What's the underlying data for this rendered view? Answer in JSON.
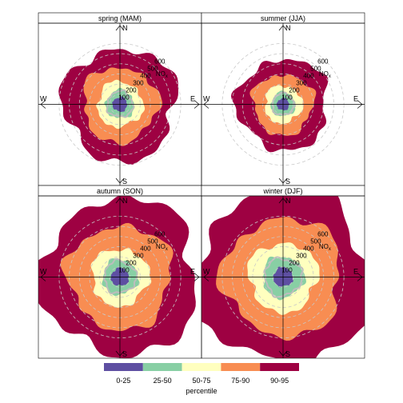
{
  "chart_data": {
    "type": "polar",
    "panels": [
      {
        "title": "spring (MAM)",
        "scale": [
          0.9,
          1.0,
          1.15,
          1.3,
          1.55
        ]
      },
      {
        "title": "summer (JJA)",
        "scale": [
          0.75,
          0.85,
          0.95,
          1.05,
          1.25
        ]
      },
      {
        "title": "autumn (SON)",
        "scale": [
          1.1,
          1.25,
          1.45,
          1.8,
          2.15
        ]
      },
      {
        "title": "winter (DJF)",
        "scale": [
          1.2,
          1.45,
          1.75,
          2.05,
          2.4
        ]
      }
    ],
    "directions": [
      "N",
      "E",
      "S",
      "W"
    ],
    "radial_ticks": [
      100,
      200,
      300,
      400,
      500,
      600
    ],
    "radial_max": 800,
    "radial_unit": "NO",
    "radial_unit_sub": "x",
    "percentile_bands": [
      {
        "label": "0-25",
        "color": "#5e4fa2",
        "radius": 80
      },
      {
        "label": "25-50",
        "color": "#88cfa4",
        "radius": 140
      },
      {
        "label": "50-75",
        "color": "#ffffbf",
        "radius": 195
      },
      {
        "label": "75-90",
        "color": "#f88d52",
        "radius": 285
      },
      {
        "label": "90-95",
        "color": "#9e0142",
        "radius": 360
      }
    ],
    "legend_title": "percentile",
    "legend_position": "bottom"
  }
}
